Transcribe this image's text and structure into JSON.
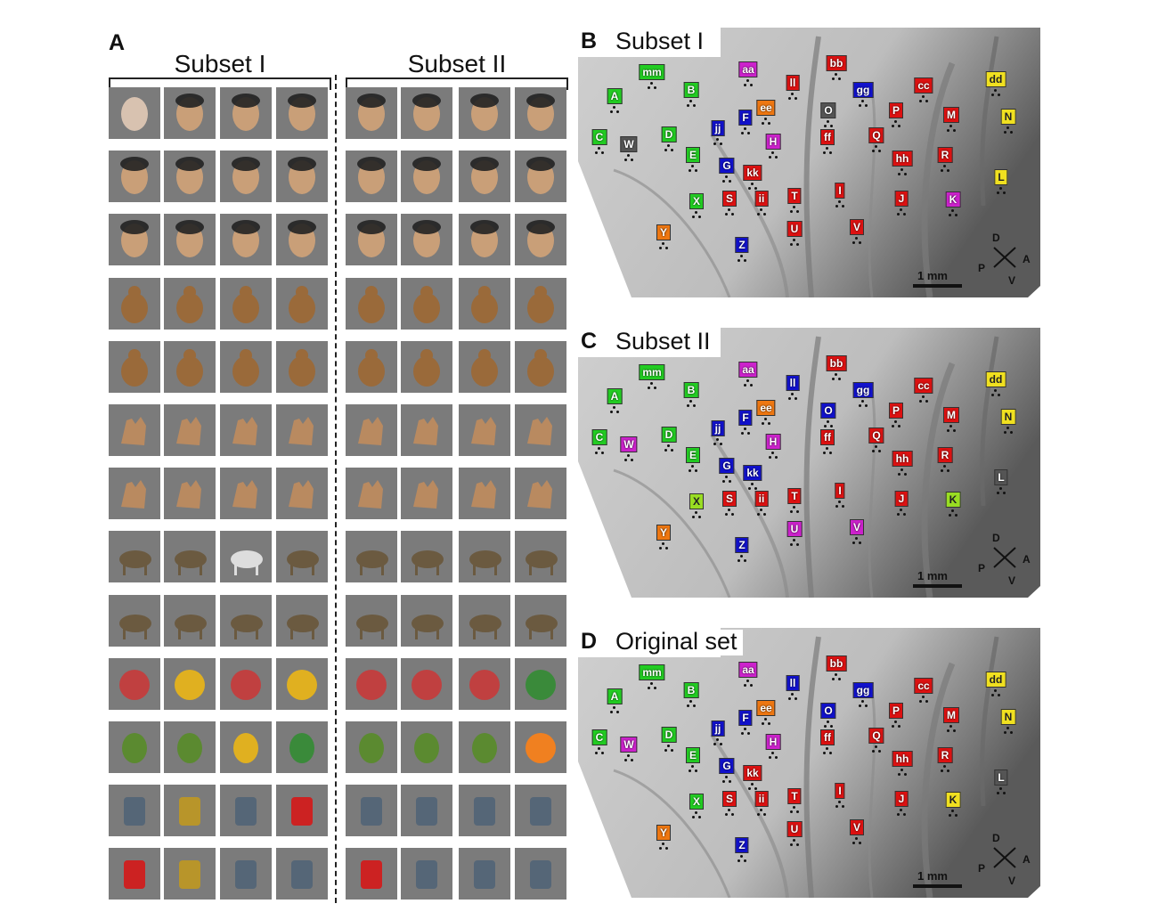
{
  "figure": {
    "panel_a": {
      "letter": "A",
      "subset1_title": "Subset  I",
      "subset2_title": "Subset  II"
    },
    "panels": [
      {
        "letter": "B",
        "title": "Subset  I"
      },
      {
        "letter": "C",
        "title": "Subset  II"
      },
      {
        "letter": "D",
        "title": "Original  set"
      }
    ],
    "scale_label": "1 mm",
    "compass": {
      "d": "D",
      "p": "P",
      "a": "A",
      "v": "V"
    }
  },
  "stimulus_rows": [
    [
      "face-mask",
      "face-human",
      "face-human",
      "face-human",
      "face-human",
      "face-human",
      "face-human",
      "face-human"
    ],
    [
      "face-monkey",
      "face-monkey",
      "face-monkey",
      "face-monkey",
      "face-monkey",
      "face-monkey",
      "face-monkey",
      "face-monkey"
    ],
    [
      "face-scrambled",
      "face-scrambled",
      "face-scrambled",
      "face-scrambled",
      "face-scrambled",
      "face-scrambled",
      "face-scrambled",
      "face-scrambled"
    ],
    [
      "body-monkey",
      "body-monkey",
      "body-monkey",
      "body-monkey",
      "body-monkey",
      "body-monkey",
      "body-monkey",
      "body-monkey"
    ],
    [
      "body-monkey-pose",
      "body-monkey-pose",
      "body-monkey-pose",
      "body-monkey-pose",
      "body-monkey-pose",
      "body-monkey-pose",
      "body-monkey-pose",
      "body-monkey-pose"
    ],
    [
      "hand-monkey",
      "hand-monkey",
      "hand-monkey",
      "hand-monkey",
      "hand-monkey",
      "hand-monkey",
      "hand-monkey",
      "hand-monkey"
    ],
    [
      "hand-human",
      "hand-human",
      "hand-human",
      "hand-human",
      "hand-human",
      "hand-human",
      "hand-human",
      "hand-human"
    ],
    [
      "animal-bird",
      "animal-goat",
      "animal-zebra",
      "animal-fish",
      "animal-bird",
      "animal-tiger",
      "animal-camel",
      "animal-giraffe"
    ],
    [
      "animal-cheetah",
      "animal-owl",
      "animal-elephant",
      "animal-kangaroo",
      "animal-raccoon",
      "animal-duck",
      "animal-deer",
      "animal-squirrel"
    ],
    [
      "fruit-apple",
      "fruit-banana",
      "fruit-nuts",
      "fruit-pumpkin",
      "fruit-apple-half",
      "fruit-pineapple",
      "fruit-potato",
      "fruit-watermelon"
    ],
    [
      "veg-broccoli",
      "veg-cherries",
      "veg-corn",
      "veg-pepper",
      "veg-mushroom",
      "veg-onions",
      "veg-onion",
      "fruit-orange"
    ],
    [
      "object-bottle",
      "object-padlock",
      "object-tape",
      "object-extinguisher",
      "object-car",
      "object-squeeze-bottle",
      "object-cart",
      "object-syringe"
    ],
    [
      "object-jerrycan",
      "object-binoculars",
      "object-chair",
      "object-teapot",
      "object-watering-can",
      "object-fork",
      "object-spray",
      "object-jar"
    ]
  ],
  "maps": [
    {
      "labels": [
        {
          "t": "mm",
          "c": "#22cc22"
        },
        {
          "t": "aa",
          "c": "#cc22cc"
        },
        {
          "t": "bb",
          "c": "#dd1111"
        },
        {
          "t": "dd",
          "c": "#f0e020"
        },
        {
          "t": "A",
          "c": "#22cc22"
        },
        {
          "t": "B",
          "c": "#22cc22"
        },
        {
          "t": "ll",
          "c": "#dd1111"
        },
        {
          "t": "gg",
          "c": "#1111cc"
        },
        {
          "t": "cc",
          "c": "#dd1111"
        },
        {
          "t": "ee",
          "c": "#ee7711"
        },
        {
          "t": "O",
          "c": "#555555"
        },
        {
          "t": "P",
          "c": "#dd1111"
        },
        {
          "t": "M",
          "c": "#dd1111"
        },
        {
          "t": "N",
          "c": "#f0e020"
        },
        {
          "t": "C",
          "c": "#22cc22"
        },
        {
          "t": "W",
          "c": "#555555"
        },
        {
          "t": "D",
          "c": "#22cc22"
        },
        {
          "t": "jj",
          "c": "#1111cc"
        },
        {
          "t": "F",
          "c": "#1111cc"
        },
        {
          "t": "H",
          "c": "#cc22cc"
        },
        {
          "t": "ff",
          "c": "#dd1111"
        },
        {
          "t": "Q",
          "c": "#dd1111"
        },
        {
          "t": "E",
          "c": "#22cc22"
        },
        {
          "t": "hh",
          "c": "#dd1111"
        },
        {
          "t": "R",
          "c": "#dd1111"
        },
        {
          "t": "G",
          "c": "#1111cc"
        },
        {
          "t": "kk",
          "c": "#dd1111"
        },
        {
          "t": "L",
          "c": "#f0e020"
        },
        {
          "t": "X",
          "c": "#22cc22"
        },
        {
          "t": "S",
          "c": "#dd1111"
        },
        {
          "t": "ii",
          "c": "#dd1111"
        },
        {
          "t": "T",
          "c": "#dd1111"
        },
        {
          "t": "I",
          "c": "#dd1111"
        },
        {
          "t": "J",
          "c": "#dd1111"
        },
        {
          "t": "K",
          "c": "#cc22cc"
        },
        {
          "t": "Y",
          "c": "#ee7711"
        },
        {
          "t": "Z",
          "c": "#1111cc"
        },
        {
          "t": "U",
          "c": "#dd1111"
        },
        {
          "t": "V",
          "c": "#dd1111"
        }
      ]
    },
    {
      "labels": [
        {
          "t": "mm",
          "c": "#22cc22"
        },
        {
          "t": "aa",
          "c": "#cc22cc"
        },
        {
          "t": "bb",
          "c": "#dd1111"
        },
        {
          "t": "dd",
          "c": "#f0e020"
        },
        {
          "t": "A",
          "c": "#22cc22"
        },
        {
          "t": "B",
          "c": "#22cc22"
        },
        {
          "t": "ll",
          "c": "#1111cc"
        },
        {
          "t": "gg",
          "c": "#1111cc"
        },
        {
          "t": "cc",
          "c": "#dd1111"
        },
        {
          "t": "ee",
          "c": "#ee7711"
        },
        {
          "t": "O",
          "c": "#1111cc"
        },
        {
          "t": "P",
          "c": "#dd1111"
        },
        {
          "t": "M",
          "c": "#dd1111"
        },
        {
          "t": "N",
          "c": "#f0e020"
        },
        {
          "t": "C",
          "c": "#22cc22"
        },
        {
          "t": "W",
          "c": "#cc22cc"
        },
        {
          "t": "D",
          "c": "#22cc22"
        },
        {
          "t": "jj",
          "c": "#1111cc"
        },
        {
          "t": "F",
          "c": "#1111cc"
        },
        {
          "t": "H",
          "c": "#cc22cc"
        },
        {
          "t": "ff",
          "c": "#dd1111"
        },
        {
          "t": "Q",
          "c": "#dd1111"
        },
        {
          "t": "E",
          "c": "#22cc22"
        },
        {
          "t": "hh",
          "c": "#dd1111"
        },
        {
          "t": "R",
          "c": "#dd1111"
        },
        {
          "t": "G",
          "c": "#1111cc"
        },
        {
          "t": "kk",
          "c": "#1111cc"
        },
        {
          "t": "L",
          "c": "#555555"
        },
        {
          "t": "X",
          "c": "#99dd22"
        },
        {
          "t": "S",
          "c": "#dd1111"
        },
        {
          "t": "ii",
          "c": "#dd1111"
        },
        {
          "t": "T",
          "c": "#dd1111"
        },
        {
          "t": "I",
          "c": "#dd1111"
        },
        {
          "t": "J",
          "c": "#dd1111"
        },
        {
          "t": "K",
          "c": "#99dd22"
        },
        {
          "t": "Y",
          "c": "#ee7711"
        },
        {
          "t": "Z",
          "c": "#1111cc"
        },
        {
          "t": "U",
          "c": "#cc22cc"
        },
        {
          "t": "V",
          "c": "#cc22cc"
        }
      ]
    },
    {
      "labels": [
        {
          "t": "mm",
          "c": "#22cc22"
        },
        {
          "t": "aa",
          "c": "#cc22cc"
        },
        {
          "t": "bb",
          "c": "#dd1111"
        },
        {
          "t": "dd",
          "c": "#f0e020"
        },
        {
          "t": "A",
          "c": "#22cc22"
        },
        {
          "t": "B",
          "c": "#22cc22"
        },
        {
          "t": "ll",
          "c": "#1111cc"
        },
        {
          "t": "gg",
          "c": "#1111cc"
        },
        {
          "t": "cc",
          "c": "#dd1111"
        },
        {
          "t": "ee",
          "c": "#ee7711"
        },
        {
          "t": "O",
          "c": "#1111cc"
        },
        {
          "t": "P",
          "c": "#dd1111"
        },
        {
          "t": "M",
          "c": "#dd1111"
        },
        {
          "t": "N",
          "c": "#f0e020"
        },
        {
          "t": "C",
          "c": "#22cc22"
        },
        {
          "t": "W",
          "c": "#cc22cc"
        },
        {
          "t": "D",
          "c": "#22cc22"
        },
        {
          "t": "jj",
          "c": "#1111cc"
        },
        {
          "t": "F",
          "c": "#1111cc"
        },
        {
          "t": "H",
          "c": "#cc22cc"
        },
        {
          "t": "ff",
          "c": "#dd1111"
        },
        {
          "t": "Q",
          "c": "#dd1111"
        },
        {
          "t": "E",
          "c": "#22cc22"
        },
        {
          "t": "hh",
          "c": "#dd1111"
        },
        {
          "t": "R",
          "c": "#dd1111"
        },
        {
          "t": "G",
          "c": "#1111cc"
        },
        {
          "t": "kk",
          "c": "#dd1111"
        },
        {
          "t": "L",
          "c": "#555555"
        },
        {
          "t": "X",
          "c": "#22cc22"
        },
        {
          "t": "S",
          "c": "#dd1111"
        },
        {
          "t": "ii",
          "c": "#dd1111"
        },
        {
          "t": "T",
          "c": "#dd1111"
        },
        {
          "t": "I",
          "c": "#dd1111"
        },
        {
          "t": "J",
          "c": "#dd1111"
        },
        {
          "t": "K",
          "c": "#f0e020"
        },
        {
          "t": "Y",
          "c": "#ee7711"
        },
        {
          "t": "Z",
          "c": "#1111cc"
        },
        {
          "t": "U",
          "c": "#dd1111"
        },
        {
          "t": "V",
          "c": "#dd1111"
        }
      ]
    }
  ]
}
